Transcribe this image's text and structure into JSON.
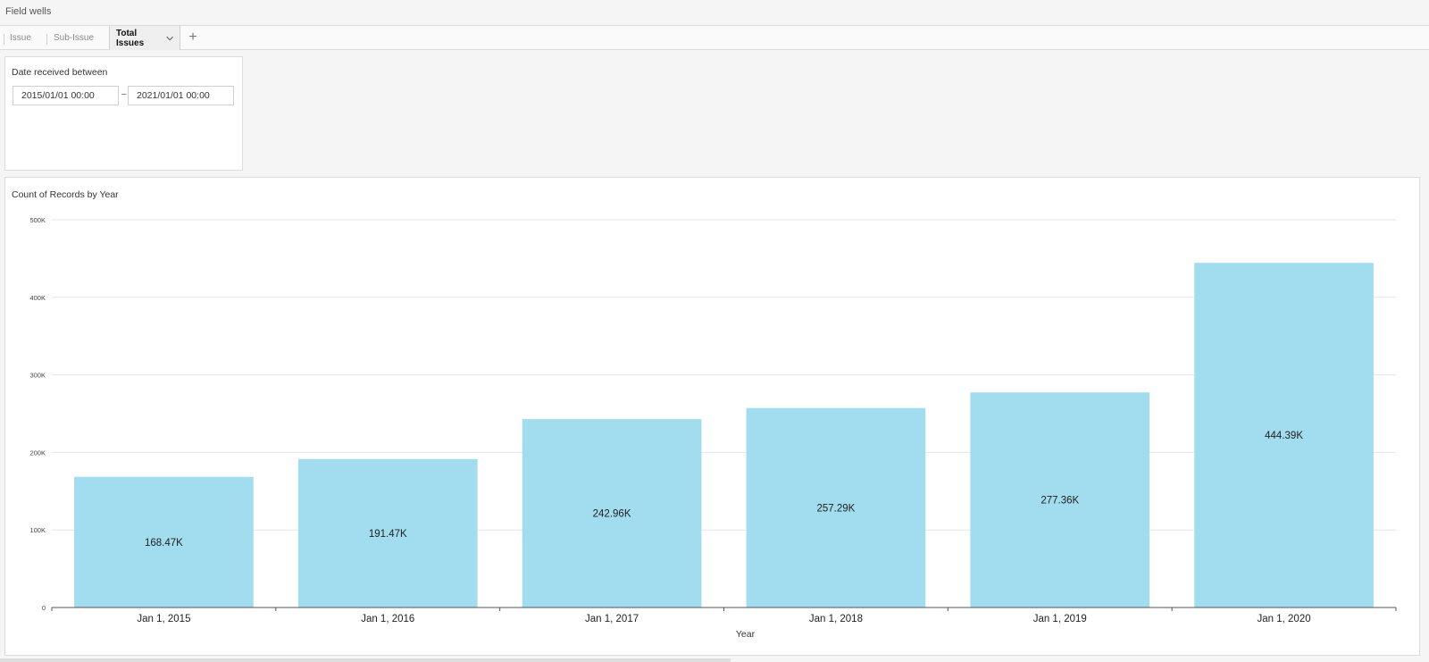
{
  "field_wells": {
    "title": "Field wells"
  },
  "tabs": [
    {
      "label": "Issue"
    },
    {
      "label": "Sub-Issue"
    },
    {
      "label": "Total Issues"
    }
  ],
  "add_tab_icon": "plus-icon",
  "filter": {
    "title": "Date received between",
    "start": "2015/01/01 00:00",
    "end": "2021/01/01 00:00",
    "separator": "–"
  },
  "colors": {
    "bar": "#a1dcef",
    "grid": "#e6e6e6",
    "axis": "#555555"
  },
  "chart_data": {
    "type": "bar",
    "title": "Count of Records by Year",
    "xlabel": "Year",
    "ylabel": "",
    "categories": [
      "Jan 1, 2015",
      "Jan 1, 2016",
      "Jan 1, 2017",
      "Jan 1, 2018",
      "Jan 1, 2019",
      "Jan 1, 2020"
    ],
    "values": [
      168470,
      191470,
      242960,
      257290,
      277360,
      444390
    ],
    "data_labels": [
      "168.47K",
      "191.47K",
      "242.96K",
      "257.29K",
      "277.36K",
      "444.39K"
    ],
    "ylim": [
      0,
      500000
    ],
    "yticks": [
      0,
      100000,
      200000,
      300000,
      400000,
      500000
    ],
    "ytick_labels": [
      "0",
      "100K",
      "200K",
      "300K",
      "400K",
      "500K"
    ],
    "grid": true,
    "legend": "none"
  }
}
